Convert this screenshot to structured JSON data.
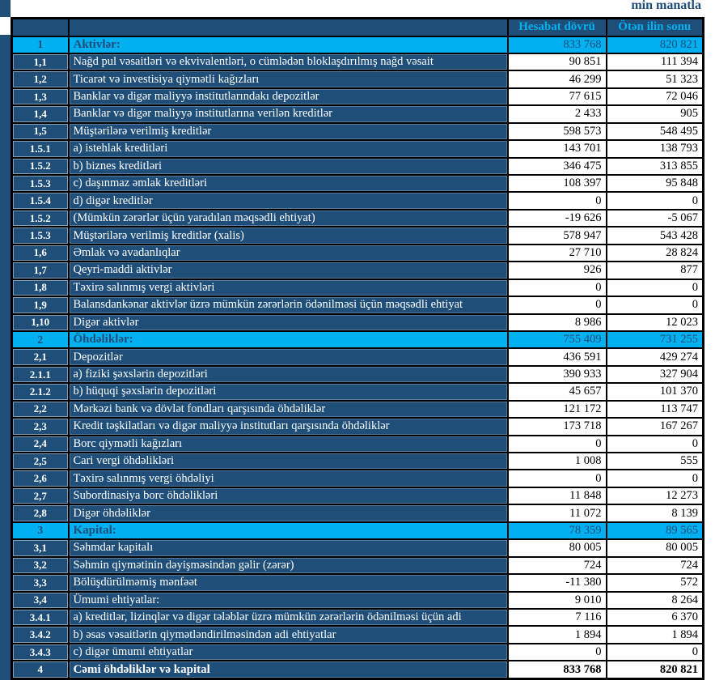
{
  "unit_label": "min manatla",
  "colors": {
    "navy": "#1F4E79",
    "cyan": "#00B0F0",
    "border": "#000000",
    "label_text": "#FFFFFF",
    "value_text": "#000000"
  },
  "table": {
    "columns": [
      "Hesabat dövrü",
      "Ötən ilin sonu"
    ],
    "rows": [
      {
        "no": "1",
        "label": "Aktivlər:",
        "v1": "833 768",
        "v2": "820 821",
        "type": "section"
      },
      {
        "no": "1,1",
        "label": "Nağd pul vəsaitləri və  ekvivalentləri, o cümlədən bloklaşdırılmış nağd vəsait",
        "v1": "90 851",
        "v2": "111 394",
        "type": "normal"
      },
      {
        "no": "1,2",
        "label": "Ticarət və investisiya qiymətli kağızları",
        "v1": "46 299",
        "v2": "51 323",
        "type": "normal"
      },
      {
        "no": "1,3",
        "label": "Banklar və digər maliyyə institutlarındakı depozitlər",
        "v1": "77 615",
        "v2": "72 046",
        "type": "normal"
      },
      {
        "no": "1,4",
        "label": "Banklar və digər maliyyə institutlarına verilən kreditlər",
        "v1": "2 433",
        "v2": "905",
        "type": "normal"
      },
      {
        "no": "1,5",
        "label": "Müştərilərə verilmiş kreditlər",
        "v1": "598 573",
        "v2": "548 495",
        "type": "normal"
      },
      {
        "no": "1.5.1",
        "label": "a) istehlak kreditləri",
        "v1": "143 701",
        "v2": "138 793",
        "type": "normal"
      },
      {
        "no": "1.5.2",
        "label": "b) biznes kreditləri",
        "v1": "346 475",
        "v2": "313 855",
        "type": "normal"
      },
      {
        "no": "1.5.3",
        "label": "c) daşınmaz əmlak kreditləri",
        "v1": "108 397",
        "v2": "95 848",
        "type": "normal"
      },
      {
        "no": "1.5.4",
        "label": "d) digər kreditlər",
        "v1": "0",
        "v2": "0",
        "type": "normal"
      },
      {
        "no": "1.5.2",
        "label": "(Mümkün zərərlər üçün yaradılan məqsədli ehtiyat)",
        "v1": "-19 626",
        "v2": "-5 067",
        "type": "normal"
      },
      {
        "no": "1.5.3",
        "label": "Müştərilərə verilmiş kreditlər (xalis)",
        "v1": "578 947",
        "v2": "543 428",
        "type": "normal"
      },
      {
        "no": "1,6",
        "label": "Əmlak və avadanlıqlar",
        "v1": "27 710",
        "v2": "28 824",
        "type": "normal"
      },
      {
        "no": "1,7",
        "label": "Qeyri-maddi aktivlər",
        "v1": "926",
        "v2": "877",
        "type": "normal"
      },
      {
        "no": "1,8",
        "label": "Təxirə salınmış vergi aktivləri",
        "v1": "0",
        "v2": "0",
        "type": "normal"
      },
      {
        "no": "1,9",
        "label": "Balansdankənar aktivlər üzrə mümkün zərərlərin ödənilməsi üçün məqsədli ehtiyat",
        "v1": "0",
        "v2": "0",
        "type": "normal"
      },
      {
        "no": "1,10",
        "label": "Digər aktivlər",
        "v1": "8 986",
        "v2": "12 023",
        "type": "normal"
      },
      {
        "no": "2",
        "label": "Öhdəliklər:",
        "v1": "755 409",
        "v2": "731 255",
        "type": "section"
      },
      {
        "no": "2,1",
        "label": "Depozitlər",
        "v1": "436 591",
        "v2": "429 274",
        "type": "normal"
      },
      {
        "no": "2.1.1",
        "label": "a) fiziki şəxslərin depozitləri",
        "v1": "390 933",
        "v2": "327 904",
        "type": "normal"
      },
      {
        "no": "2.1.2",
        "label": "b) hüquqi şəxslərin depozitləri",
        "v1": "45 657",
        "v2": "101 370",
        "type": "normal"
      },
      {
        "no": "2,2",
        "label": "Mərkəzi bank və dövlət fondları qarşısında öhdəliklər",
        "v1": "121 172",
        "v2": "113 747",
        "type": "normal"
      },
      {
        "no": "2,3",
        "label": "Kredit təşkilatları və digər maliyyə institutları qarşısında öhdəliklər",
        "v1": "173 718",
        "v2": "167 267",
        "type": "normal"
      },
      {
        "no": "2,4",
        "label": "Borc qiymətli kağızları",
        "v1": "0",
        "v2": "0",
        "type": "normal"
      },
      {
        "no": "2,5",
        "label": "Cari vergi öhdəlikləri",
        "v1": "1 008",
        "v2": "555",
        "type": "normal"
      },
      {
        "no": "2,6",
        "label": "Təxirə salınmış vergi öhdəliyi",
        "v1": "0",
        "v2": "0",
        "type": "normal"
      },
      {
        "no": "2,7",
        "label": "Subordinasiya borc öhdəlikləri",
        "v1": "11 848",
        "v2": "12 273",
        "type": "normal"
      },
      {
        "no": "2,8",
        "label": "Digər öhdəliklər",
        "v1": "11 072",
        "v2": "8 139",
        "type": "normal"
      },
      {
        "no": "3",
        "label": "Kapital:",
        "v1": "78 359",
        "v2": "89 565",
        "type": "section"
      },
      {
        "no": "3,1",
        "label": "Səhmdar kapitalı",
        "v1": "80 005",
        "v2": "80 005",
        "type": "normal"
      },
      {
        "no": "3,2",
        "label": "Səhmin qiymətinin dəyişməsindən gəlir (zərər)",
        "v1": "724",
        "v2": "724",
        "type": "normal"
      },
      {
        "no": "3,3",
        "label": "Bölüşdürülməmiş mənfəət",
        "v1": "-11 380",
        "v2": "572",
        "type": "normal"
      },
      {
        "no": "3,4",
        "label": "Ümumi ehtiyatlar:",
        "v1": "9 010",
        "v2": "8 264",
        "type": "normal"
      },
      {
        "no": "3.4.1",
        "label": "a) kreditlər, lizinqlər və digər tələblər üzrə mümkün zərərlərin ödənilməsi üçün adi",
        "v1": "7 116",
        "v2": "6 370",
        "type": "normal"
      },
      {
        "no": "3.4.2",
        "label": "b) əsas vəsaitlərin qiymətləndirilməsindən adi ehtiyatlar",
        "v1": "1 894",
        "v2": "1 894",
        "type": "normal"
      },
      {
        "no": "3.4.3",
        "label": "c) digər ümumi ehtiyatlar",
        "v1": "0",
        "v2": "0",
        "type": "normal"
      },
      {
        "no": "4",
        "label": "Cəmi öhdəliklər və kapital",
        "v1": "833 768",
        "v2": "820 821",
        "type": "total"
      }
    ]
  }
}
